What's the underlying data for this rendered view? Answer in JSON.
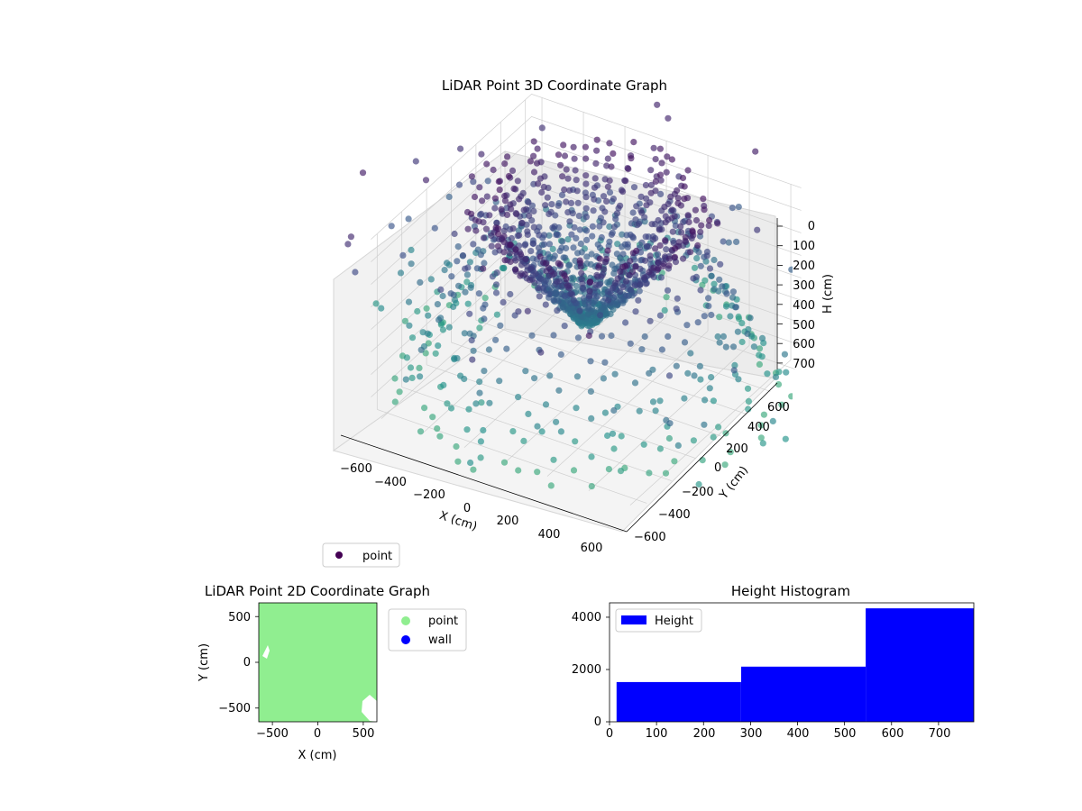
{
  "colors": {
    "viridis_dark": "#440154",
    "viridis_mid": "#3b528b",
    "viridis_teal": "#21918c",
    "point_green": "#90ee90",
    "wall_blue": "#0000ff",
    "hist_blue": "#0000ff",
    "pane": "#f2f2f2",
    "grid": "#cfcfcf"
  },
  "chart_data": [
    {
      "type": "scatter",
      "projection": "3d",
      "title": "LiDAR Point 3D Coordinate Graph",
      "xlabel": "X (cm)",
      "ylabel": "Y (cm)",
      "zlabel": "H (cm)",
      "xlim": [
        -650,
        650
      ],
      "ylim": [
        -650,
        650
      ],
      "zlim": [
        780,
        0
      ],
      "x_ticks": [
        "−600",
        "−400",
        "−200",
        "0",
        "200",
        "400",
        "600"
      ],
      "y_ticks": [
        "−600",
        "−400",
        "−200",
        "0",
        "200",
        "400",
        "600"
      ],
      "z_ticks": [
        "0",
        "100",
        "200",
        "300",
        "400",
        "500",
        "600",
        "700"
      ],
      "colormap": "viridis",
      "legend": {
        "entries": [
          "point"
        ],
        "position": "lower-left"
      },
      "grid": true
    },
    {
      "type": "scatter",
      "title": "LiDAR Point 2D Coordinate Graph",
      "xlabel": "X (cm)",
      "ylabel": "Y (cm)",
      "xlim": [
        -650,
        650
      ],
      "ylim": [
        -650,
        650
      ],
      "x_ticks": [
        "−500",
        "0",
        "500"
      ],
      "y_ticks": [
        "500",
        "0",
        "−500"
      ],
      "series": [
        {
          "name": "point",
          "color": "#90ee90"
        },
        {
          "name": "wall",
          "color": "#0000ff"
        }
      ],
      "legend": {
        "position": "outside-right"
      }
    },
    {
      "type": "bar",
      "title": "Height Histogram",
      "xlim": [
        0,
        775
      ],
      "ylim": [
        0,
        4550
      ],
      "x_ticks": [
        "0",
        "100",
        "200",
        "300",
        "400",
        "500",
        "600",
        "700"
      ],
      "y_ticks": [
        "0",
        "2000",
        "4000"
      ],
      "bins": [
        {
          "start": 15,
          "end": 280,
          "value": 1520
        },
        {
          "start": 280,
          "end": 545,
          "value": 2110
        },
        {
          "start": 545,
          "end": 775,
          "value": 4340
        }
      ],
      "series": [
        {
          "name": "Height",
          "color": "#0000ff"
        }
      ],
      "legend": {
        "position": "top-left"
      }
    }
  ]
}
